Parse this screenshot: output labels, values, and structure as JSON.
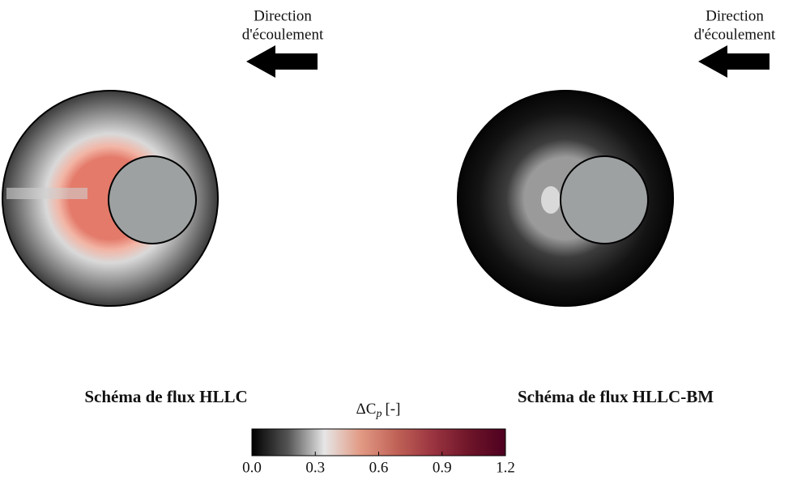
{
  "figure": {
    "panels": [
      {
        "title": "Schéma de flux HLLC",
        "annotation": [
          "Direction",
          "d'écoulement"
        ]
      },
      {
        "title": "Schéma de flux HLLC-BM",
        "annotation": [
          "Direction",
          "d'écoulement"
        ]
      }
    ],
    "colorbar": {
      "label": {
        "symbol": "ΔC",
        "subscript": "p",
        "unit": "[-]"
      },
      "lim": [
        0,
        1.2
      ],
      "ticks": [
        {
          "value": 0,
          "label": "0.0"
        },
        0.3,
        0.6,
        0.9,
        1.2
      ],
      "colors": [
        "#000000",
        "#555555",
        "#e6e6e6",
        "#e29a84",
        "#c06257",
        "#9a3440",
        "#6e1529",
        "#4e0020"
      ]
    }
  }
}
